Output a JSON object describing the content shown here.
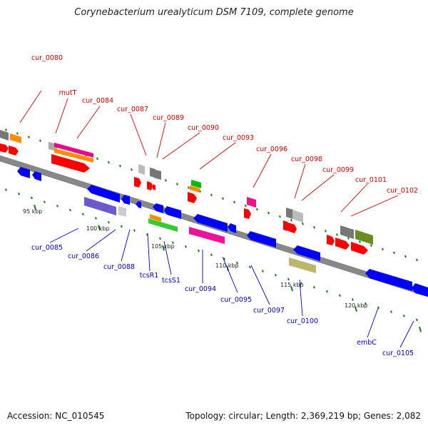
{
  "title": "Corynebacterium urealyticum DSM 7109, complete genome",
  "footer": {
    "accession": "Accession: NC_010545",
    "topology": "Topology: circular; Length: 2,369,219 bp; Genes: 2,082"
  },
  "colors": {
    "backbone": "#888888",
    "tick": "#1a7a1a",
    "label_top": "#cc0000",
    "label_bottom": "#0000bb",
    "plus_strand": "#ff0000",
    "minus_strand": "#0000ff"
  },
  "ruler": [
    "95 kbp",
    "100 kbp",
    "105 kbp",
    "110 kbp",
    "115 kbp",
    "120 kbp"
  ],
  "gene_labels_top": [
    "cur_0080",
    "mutT",
    "cur_0084",
    "cur_0087",
    "cur_0089",
    "cur_0090",
    "cur_0093",
    "cur_0096",
    "cur_0098",
    "cur_0099",
    "cur_0101",
    "cur_0102"
  ],
  "gene_labels_bottom": [
    "cur_0085",
    "cur_0086",
    "cur_0088",
    "tcsR1",
    "tcsS1",
    "cur_0094",
    "cur_0095",
    "cur_0097",
    "cur_0100",
    "embC",
    "cur_0105"
  ]
}
